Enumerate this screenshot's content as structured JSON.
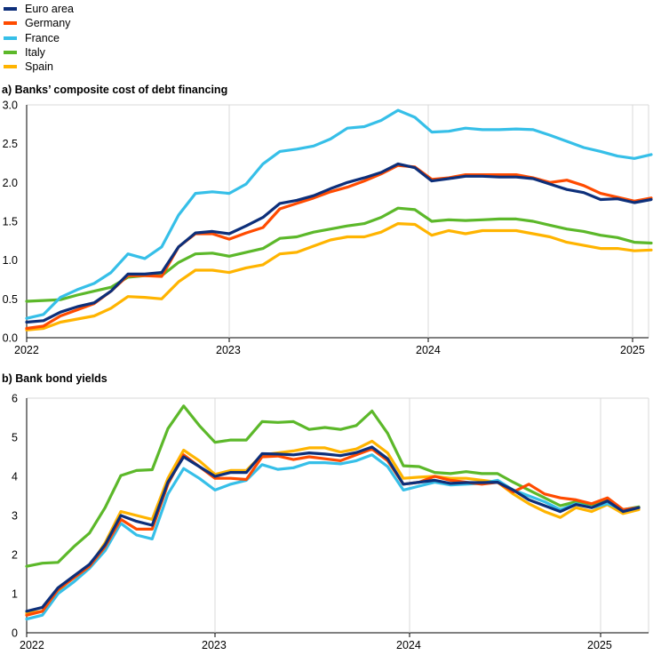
{
  "legend": [
    {
      "name": "Euro area",
      "color": "#0d2f7a"
    },
    {
      "name": "Germany",
      "color": "#ff4b00"
    },
    {
      "name": "France",
      "color": "#36bfe8"
    },
    {
      "name": "Italy",
      "color": "#5cb82a"
    },
    {
      "name": "Spain",
      "color": "#ffb400"
    }
  ],
  "panels": {
    "a_title": "a) Banks’ composite cost of debt financing",
    "b_title": "b) Bank bond yields"
  },
  "chart_data": [
    {
      "type": "line",
      "title": "a) Banks’ composite cost of debt financing",
      "xlabel": "",
      "ylabel": "",
      "ylim": [
        0,
        3.0
      ],
      "yticks": [
        "0.0",
        "0.5",
        "1.0",
        "1.5",
        "2.0",
        "2.5",
        "3.0"
      ],
      "xticks": [
        "2022",
        "2023",
        "2024",
        "2025"
      ],
      "x_start": "2022-01",
      "x_frequency": "monthly",
      "grid": "vertical at years",
      "series": [
        {
          "name": "Euro area",
          "color": "#0d2f7a",
          "values": [
            0.2,
            0.22,
            0.33,
            0.4,
            0.45,
            0.6,
            0.82,
            0.82,
            0.84,
            1.17,
            1.35,
            1.37,
            1.34,
            1.44,
            1.55,
            1.73,
            1.77,
            1.83,
            1.92,
            2.0,
            2.06,
            2.13,
            2.24,
            2.19,
            2.02,
            2.05,
            2.08,
            2.08,
            2.07,
            2.07,
            2.05,
            1.98,
            1.91,
            1.87,
            1.78,
            1.79,
            1.74,
            1.78
          ]
        },
        {
          "name": "Germany",
          "color": "#ff4b00",
          "values": [
            0.12,
            0.15,
            0.28,
            0.36,
            0.44,
            0.6,
            0.8,
            0.8,
            0.79,
            1.17,
            1.34,
            1.34,
            1.27,
            1.35,
            1.42,
            1.66,
            1.73,
            1.8,
            1.88,
            1.94,
            2.02,
            2.11,
            2.22,
            2.2,
            2.04,
            2.06,
            2.1,
            2.1,
            2.1,
            2.1,
            2.06,
            2.0,
            2.03,
            1.96,
            1.86,
            1.81,
            1.76,
            1.8
          ]
        },
        {
          "name": "France",
          "color": "#36bfe8",
          "values": [
            0.25,
            0.3,
            0.52,
            0.62,
            0.7,
            0.84,
            1.08,
            1.02,
            1.17,
            1.58,
            1.86,
            1.88,
            1.86,
            1.98,
            2.24,
            2.4,
            2.43,
            2.47,
            2.56,
            2.7,
            2.72,
            2.8,
            2.93,
            2.84,
            2.65,
            2.66,
            2.7,
            2.68,
            2.68,
            2.69,
            2.68,
            2.61,
            2.53,
            2.45,
            2.4,
            2.34,
            2.31,
            2.36
          ]
        },
        {
          "name": "Italy",
          "color": "#5cb82a",
          "values": [
            0.47,
            0.48,
            0.49,
            0.55,
            0.6,
            0.65,
            0.78,
            0.8,
            0.8,
            0.97,
            1.08,
            1.09,
            1.05,
            1.1,
            1.15,
            1.28,
            1.3,
            1.36,
            1.4,
            1.44,
            1.47,
            1.55,
            1.67,
            1.65,
            1.5,
            1.52,
            1.51,
            1.52,
            1.53,
            1.53,
            1.5,
            1.45,
            1.4,
            1.37,
            1.32,
            1.29,
            1.23,
            1.22
          ]
        },
        {
          "name": "Spain",
          "color": "#ffb400",
          "values": [
            0.1,
            0.12,
            0.2,
            0.24,
            0.28,
            0.38,
            0.53,
            0.52,
            0.5,
            0.72,
            0.87,
            0.87,
            0.84,
            0.9,
            0.94,
            1.08,
            1.1,
            1.18,
            1.26,
            1.3,
            1.3,
            1.36,
            1.47,
            1.46,
            1.32,
            1.38,
            1.34,
            1.38,
            1.38,
            1.38,
            1.34,
            1.3,
            1.23,
            1.19,
            1.15,
            1.15,
            1.12,
            1.13
          ]
        }
      ]
    },
    {
      "type": "line",
      "title": "b) Bank bond yields",
      "xlabel": "",
      "ylabel": "",
      "ylim": [
        0,
        6
      ],
      "yticks": [
        "0",
        "1",
        "2",
        "3",
        "4",
        "5",
        "6"
      ],
      "xticks": [
        "2022",
        "2023",
        "2024",
        "2025"
      ],
      "x_start": "2022-01",
      "x_frequency": "monthly",
      "grid": "vertical at years",
      "series": [
        {
          "name": "Euro area",
          "color": "#0d2f7a",
          "values": [
            0.55,
            0.65,
            1.15,
            1.45,
            1.75,
            2.25,
            3.0,
            2.85,
            2.75,
            3.85,
            4.5,
            4.25,
            4.0,
            4.1,
            4.1,
            4.58,
            4.57,
            4.55,
            4.6,
            4.57,
            4.53,
            4.61,
            4.75,
            4.45,
            3.8,
            3.85,
            3.9,
            3.82,
            3.84,
            3.84,
            3.85,
            3.65,
            3.4,
            3.25,
            3.1,
            3.28,
            3.2,
            3.37,
            3.1,
            3.2
          ]
        },
        {
          "name": "Germany",
          "color": "#ff4b00",
          "values": [
            0.45,
            0.55,
            1.1,
            1.4,
            1.7,
            2.2,
            2.9,
            2.65,
            2.65,
            3.8,
            4.55,
            4.25,
            3.95,
            3.95,
            3.92,
            4.5,
            4.52,
            4.43,
            4.5,
            4.45,
            4.4,
            4.55,
            4.7,
            4.4,
            3.8,
            3.85,
            4.0,
            3.9,
            3.85,
            3.8,
            3.85,
            3.6,
            3.8,
            3.55,
            3.45,
            3.4,
            3.3,
            3.45,
            3.15,
            3.2
          ]
        },
        {
          "name": "France",
          "color": "#36bfe8",
          "values": [
            0.35,
            0.45,
            1.0,
            1.3,
            1.65,
            2.1,
            2.8,
            2.5,
            2.4,
            3.55,
            4.2,
            3.95,
            3.65,
            3.8,
            3.9,
            4.3,
            4.18,
            4.22,
            4.35,
            4.35,
            4.32,
            4.4,
            4.55,
            4.25,
            3.65,
            3.75,
            3.85,
            3.78,
            3.8,
            3.82,
            3.9,
            3.65,
            3.5,
            3.35,
            3.15,
            3.3,
            3.2,
            3.3,
            3.15,
            3.2
          ]
        },
        {
          "name": "Italy",
          "color": "#5cb82a",
          "values": [
            1.7,
            1.78,
            1.8,
            2.2,
            2.55,
            3.2,
            4.02,
            4.15,
            4.17,
            5.22,
            5.8,
            5.3,
            4.87,
            4.93,
            4.93,
            5.4,
            5.38,
            5.4,
            5.2,
            5.25,
            5.2,
            5.3,
            5.67,
            5.1,
            4.27,
            4.25,
            4.1,
            4.07,
            4.12,
            4.07,
            4.07,
            3.85,
            3.65,
            3.45,
            3.25,
            3.35,
            3.28,
            3.38,
            3.15,
            3.22
          ]
        },
        {
          "name": "Spain",
          "color": "#ffb400",
          "values": [
            0.5,
            0.55,
            1.05,
            1.45,
            1.7,
            2.3,
            3.1,
            3.0,
            2.9,
            3.95,
            4.67,
            4.4,
            4.05,
            4.15,
            4.15,
            4.55,
            4.6,
            4.65,
            4.73,
            4.73,
            4.62,
            4.7,
            4.9,
            4.6,
            3.95,
            3.98,
            4.0,
            3.95,
            3.95,
            3.9,
            3.85,
            3.55,
            3.3,
            3.1,
            2.95,
            3.2,
            3.1,
            3.28,
            3.05,
            3.15
          ]
        }
      ]
    }
  ]
}
